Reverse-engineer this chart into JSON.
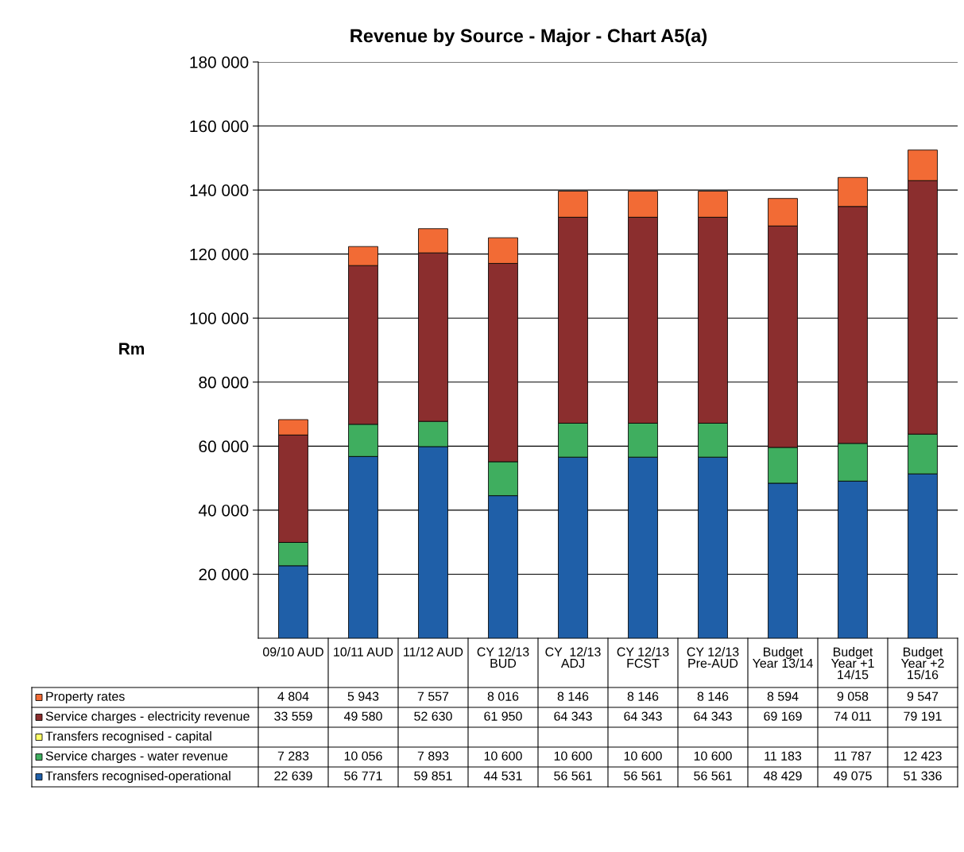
{
  "chart_data": {
    "type": "bar",
    "title": "Revenue by Source - Major - Chart A5(a)",
    "ylabel": "Rm",
    "categories": [
      "09/10 AUD",
      "10/11 AUD",
      "11/12 AUD",
      "CY 12/13\nBUD",
      "CY  12/13\nADJ",
      "CY 12/13\nFCST",
      "CY 12/13\nPre-AUD",
      "Budget\nYear 13/14",
      "Budget\nYear +1\n14/15",
      "Budget\nYear +2\n15/16"
    ],
    "stacked": true,
    "series": [
      {
        "name": "Transfers recognised-operational",
        "color": "#1f5fa8",
        "values": [
          22639,
          56771,
          59851,
          44531,
          56561,
          56561,
          56561,
          48429,
          49075,
          51336
        ]
      },
      {
        "name": "Service charges - water revenue",
        "color": "#3fae5f",
        "values": [
          7283,
          10056,
          7893,
          10600,
          10600,
          10600,
          10600,
          11183,
          11787,
          12423
        ]
      },
      {
        "name": "Transfers recognised - capital",
        "color": "#ffff66",
        "values": [
          null,
          null,
          null,
          null,
          null,
          null,
          null,
          null,
          null,
          null
        ]
      },
      {
        "name": "Service charges - electricity revenue",
        "color": "#8b2e2e",
        "values": [
          33559,
          49580,
          52630,
          61950,
          64343,
          64343,
          64343,
          69169,
          74011,
          79191
        ]
      },
      {
        "name": "Property rates",
        "color": "#f26b35",
        "values": [
          4804,
          5943,
          7557,
          8016,
          8146,
          8146,
          8146,
          8594,
          9058,
          9547
        ]
      }
    ],
    "ylim": [
      0,
      180000
    ],
    "yticks": [
      {
        "value": 20000,
        "label": "20 000"
      },
      {
        "value": 40000,
        "label": "40 000"
      },
      {
        "value": 60000,
        "label": "60 000"
      },
      {
        "value": 80000,
        "label": "80 000"
      },
      {
        "value": 100000,
        "label": "100 000"
      },
      {
        "value": 120000,
        "label": "120 000"
      },
      {
        "value": 140000,
        "label": "140 000"
      },
      {
        "value": 160000,
        "label": "160 000"
      },
      {
        "value": 180000,
        "label": "180 000"
      }
    ],
    "grid": "y",
    "data_labels": true,
    "legend": "bottom"
  }
}
